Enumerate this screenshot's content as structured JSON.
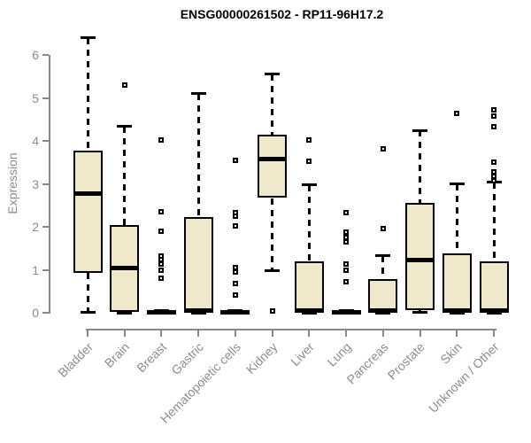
{
  "chart_data": {
    "type": "boxplot",
    "title": "ENSG00000261502 - RP11-96H17.2",
    "ylabel": "Expression",
    "xlabel": "",
    "ylim": [
      0,
      6.5
    ],
    "yticks": [
      0,
      1,
      2,
      3,
      4,
      5,
      6
    ],
    "grid": false,
    "legend": false,
    "colors": {
      "box_fill": "#EFE8CB",
      "box_border": "#000000",
      "axis": "#888888",
      "label_text": "#8c8c8c",
      "title_text": "#000000"
    },
    "categories": [
      "Bladder",
      "Brain",
      "Breast",
      "Gastric",
      "Hematopoietic cells",
      "Kidney",
      "Liver",
      "Lung",
      "Pancreas",
      "Prostate",
      "Skin",
      "Unknown / Other"
    ],
    "boxes": [
      {
        "label": "Bladder",
        "whisker_low": 0.02,
        "q1": 0.93,
        "median": 2.78,
        "q3": 3.78,
        "whisker_high": 6.4,
        "outliers": []
      },
      {
        "label": "Brain",
        "whisker_low": 0.0,
        "q1": 0.02,
        "median": 1.05,
        "q3": 2.04,
        "whisker_high": 4.34,
        "outliers": [
          5.3
        ]
      },
      {
        "label": "Breast",
        "whisker_low": 0.0,
        "q1": 0.0,
        "median": 0.02,
        "q3": 0.04,
        "whisker_high": 0.05,
        "outliers": [
          4.03,
          2.36,
          1.9,
          1.32,
          1.24,
          1.14,
          0.98,
          0.8
        ]
      },
      {
        "label": "Gastric",
        "whisker_low": 0.0,
        "q1": 0.02,
        "median": 0.05,
        "q3": 2.23,
        "whisker_high": 5.1,
        "outliers": []
      },
      {
        "label": "Hematopoietic cells",
        "whisker_low": 0.0,
        "q1": 0.0,
        "median": 0.02,
        "q3": 0.04,
        "whisker_high": 0.05,
        "outliers": [
          3.55,
          2.33,
          2.24,
          2.02,
          1.06,
          0.95,
          0.68,
          0.41
        ]
      },
      {
        "label": "Kidney",
        "whisker_low": 0.98,
        "q1": 2.67,
        "median": 3.58,
        "q3": 4.15,
        "whisker_high": 5.55,
        "outliers": [
          0.04
        ]
      },
      {
        "label": "Liver",
        "whisker_low": 0.0,
        "q1": 0.02,
        "median": 0.05,
        "q3": 1.2,
        "whisker_high": 2.97,
        "outliers": [
          4.02,
          3.52
        ]
      },
      {
        "label": "Lung",
        "whisker_low": 0.0,
        "q1": 0.0,
        "median": 0.02,
        "q3": 0.04,
        "whisker_high": 0.05,
        "outliers": [
          2.33,
          1.88,
          1.76,
          1.64,
          1.13,
          0.99,
          0.72
        ]
      },
      {
        "label": "Pancreas",
        "whisker_low": 0.0,
        "q1": 0.02,
        "median": 0.05,
        "q3": 0.78,
        "whisker_high": 1.32,
        "outliers": [
          3.82,
          1.95
        ]
      },
      {
        "label": "Prostate",
        "whisker_low": 0.02,
        "q1": 0.07,
        "median": 1.22,
        "q3": 2.56,
        "whisker_high": 4.24,
        "outliers": []
      },
      {
        "label": "Skin",
        "whisker_low": 0.0,
        "q1": 0.03,
        "median": 0.05,
        "q3": 1.38,
        "whisker_high": 3.0,
        "outliers": [
          4.63
        ]
      },
      {
        "label": "Unknown / Other",
        "whisker_low": 0.0,
        "q1": 0.02,
        "median": 0.05,
        "q3": 1.2,
        "whisker_high": 3.04,
        "outliers": [
          4.72,
          4.58,
          4.32,
          3.5,
          3.28,
          3.18,
          3.08
        ]
      }
    ]
  }
}
